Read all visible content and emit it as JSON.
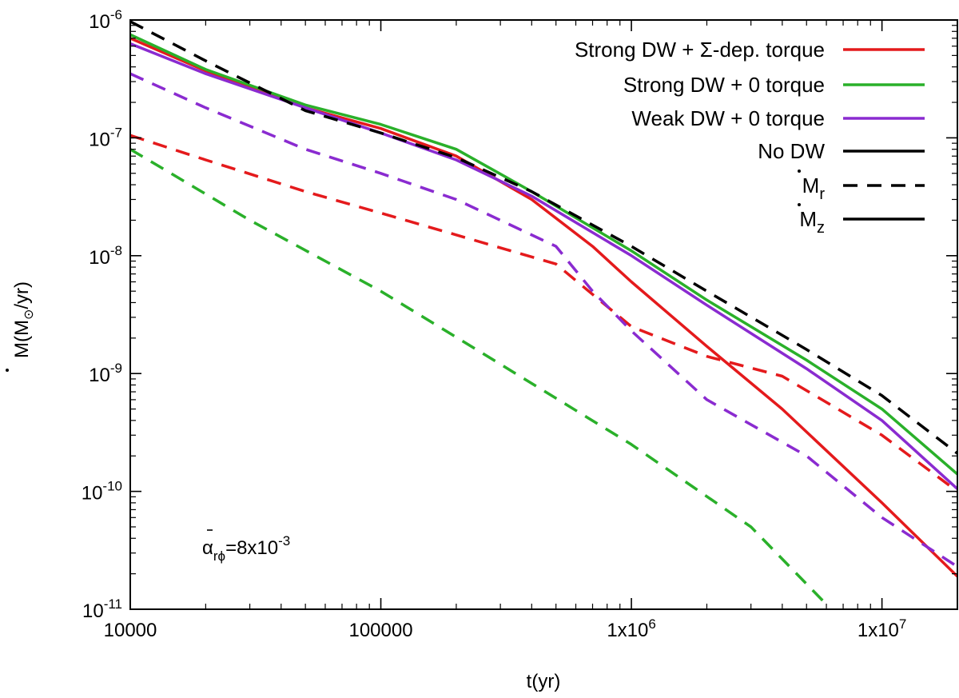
{
  "chart_data": {
    "type": "line",
    "xscale": "log",
    "yscale": "log",
    "xlim": [
      10000,
      20000000
    ],
    "ylim": [
      1e-11,
      1e-06
    ],
    "xlabel": "t(yr)",
    "ylabel": {
      "base": "M",
      "paren_open": "(M",
      "sub": "⊙",
      "tail": "/yr)"
    },
    "xticks": [
      {
        "value": 10000,
        "label": "10000",
        "base": "10000",
        "exp": ""
      },
      {
        "value": 100000,
        "label": "100000",
        "base": "100000",
        "exp": ""
      },
      {
        "value": 1000000,
        "label": "1x10^6",
        "base": "1x10",
        "exp": "6"
      },
      {
        "value": 10000000,
        "label": "1x10^7",
        "base": "1x10",
        "exp": "7"
      }
    ],
    "yticks": [
      {
        "value": 1e-06,
        "label": "10^-6",
        "base": "10",
        "exp": "-6"
      },
      {
        "value": 1e-07,
        "label": "10^-7",
        "base": "10",
        "exp": "-7"
      },
      {
        "value": 1e-08,
        "label": "10^-8",
        "base": "10",
        "exp": "-8"
      },
      {
        "value": 1e-09,
        "label": "10^-9",
        "base": "10",
        "exp": "-9"
      },
      {
        "value": 1e-10,
        "label": "10^-10",
        "base": "10",
        "exp": "-10"
      },
      {
        "value": 1e-11,
        "label": "10^-11",
        "base": "10",
        "exp": "-11"
      }
    ],
    "annotation": {
      "alpha": "α",
      "sub": "rϕ",
      "eq": "=8x10",
      "exp": "-3"
    },
    "legend": {
      "placement": "top-right",
      "entries": [
        {
          "label": "Strong DW + Σ-dep. torque",
          "color": "#e41a1c",
          "dash": false
        },
        {
          "label": "Strong DW + 0 torque",
          "color": "#2ab02a",
          "dash": false
        },
        {
          "label": "Weak DW + 0 torque",
          "color": "#8a2bd0",
          "dash": false
        },
        {
          "label": "No DW",
          "color": "#000000",
          "dash": false
        },
        {
          "label": "M",
          "sub": "r",
          "color": "#000000",
          "dash": true
        },
        {
          "label": "M",
          "sub": "z",
          "color": "#000000",
          "dash": false
        }
      ]
    },
    "series": [
      {
        "name": "Strong DW + Σ-dep. torque (Mz)",
        "color": "#e41a1c",
        "dash": false,
        "points": [
          [
            10000,
            7e-07
          ],
          [
            20000,
            3.7e-07
          ],
          [
            50000,
            1.8e-07
          ],
          [
            100000,
            1.2e-07
          ],
          [
            200000,
            7e-08
          ],
          [
            400000,
            3e-08
          ],
          [
            700000,
            1.2e-08
          ],
          [
            1000000,
            6e-09
          ],
          [
            2000000,
            1.7e-09
          ],
          [
            4000000,
            5e-10
          ],
          [
            10000000,
            8e-11
          ],
          [
            20000000,
            1.9e-11
          ]
        ]
      },
      {
        "name": "Strong DW + 0 torque (Mz)",
        "color": "#2ab02a",
        "dash": false,
        "points": [
          [
            10000,
            7.5e-07
          ],
          [
            20000,
            3.8e-07
          ],
          [
            50000,
            1.9e-07
          ],
          [
            100000,
            1.3e-07
          ],
          [
            200000,
            8e-08
          ],
          [
            400000,
            3.5e-08
          ],
          [
            1000000,
            1.1e-08
          ],
          [
            2000000,
            4.2e-09
          ],
          [
            5000000,
            1.3e-09
          ],
          [
            10000000,
            5e-10
          ],
          [
            20000000,
            1.4e-10
          ]
        ]
      },
      {
        "name": "Weak DW + 0 torque (Mz)",
        "color": "#8a2bd0",
        "dash": false,
        "points": [
          [
            10000,
            6.3e-07
          ],
          [
            20000,
            3.5e-07
          ],
          [
            50000,
            1.8e-07
          ],
          [
            100000,
            1.1e-07
          ],
          [
            200000,
            6.5e-08
          ],
          [
            400000,
            3.2e-08
          ],
          [
            1000000,
            1e-08
          ],
          [
            2000000,
            3.8e-09
          ],
          [
            5000000,
            1.1e-09
          ],
          [
            10000000,
            4e-10
          ],
          [
            20000000,
            1.05e-10
          ]
        ]
      },
      {
        "name": "No DW (Mr)",
        "color": "#000000",
        "dash": true,
        "points": [
          [
            10000,
            9.7e-07
          ],
          [
            20000,
            4.5e-07
          ],
          [
            50000,
            1.7e-07
          ],
          [
            100000,
            1.1e-07
          ],
          [
            200000,
            6.8e-08
          ],
          [
            400000,
            3.5e-08
          ],
          [
            1000000,
            1.2e-08
          ],
          [
            2000000,
            5e-09
          ],
          [
            5000000,
            1.6e-09
          ],
          [
            10000000,
            6.5e-10
          ],
          [
            20000000,
            2.1e-10
          ]
        ]
      },
      {
        "name": "Strong DW + Σ-dep. torque (Mr)",
        "color": "#e41a1c",
        "dash": true,
        "points": [
          [
            10000,
            1.05e-07
          ],
          [
            20000,
            6.5e-08
          ],
          [
            50000,
            3.5e-08
          ],
          [
            100000,
            2.3e-08
          ],
          [
            200000,
            1.5e-08
          ],
          [
            500000,
            8.5e-09
          ],
          [
            1000000,
            2.5e-09
          ],
          [
            2000000,
            1.4e-09
          ],
          [
            4000000,
            9.5e-10
          ],
          [
            10000000,
            3e-10
          ],
          [
            20000000,
            1e-10
          ]
        ]
      },
      {
        "name": "Strong DW + 0 torque (Mr)",
        "color": "#2ab02a",
        "dash": true,
        "points": [
          [
            10000,
            8e-08
          ],
          [
            30000,
            2e-08
          ],
          [
            100000,
            5e-09
          ],
          [
            300000,
            1.2e-09
          ],
          [
            1000000,
            2.5e-10
          ],
          [
            3000000,
            5e-11
          ],
          [
            6000000,
            1.1e-11
          ]
        ]
      },
      {
        "name": "Weak DW + 0 torque (Mr)",
        "color": "#8a2bd0",
        "dash": true,
        "points": [
          [
            10000,
            3.5e-07
          ],
          [
            20000,
            1.8e-07
          ],
          [
            50000,
            8e-08
          ],
          [
            100000,
            5e-08
          ],
          [
            200000,
            3e-08
          ],
          [
            500000,
            1.2e-08
          ],
          [
            700000,
            5e-09
          ],
          [
            1000000,
            2.3e-09
          ],
          [
            2000000,
            6e-10
          ],
          [
            5000000,
            2e-10
          ],
          [
            10000000,
            6e-11
          ],
          [
            20000000,
            2.3e-11
          ]
        ]
      }
    ]
  }
}
